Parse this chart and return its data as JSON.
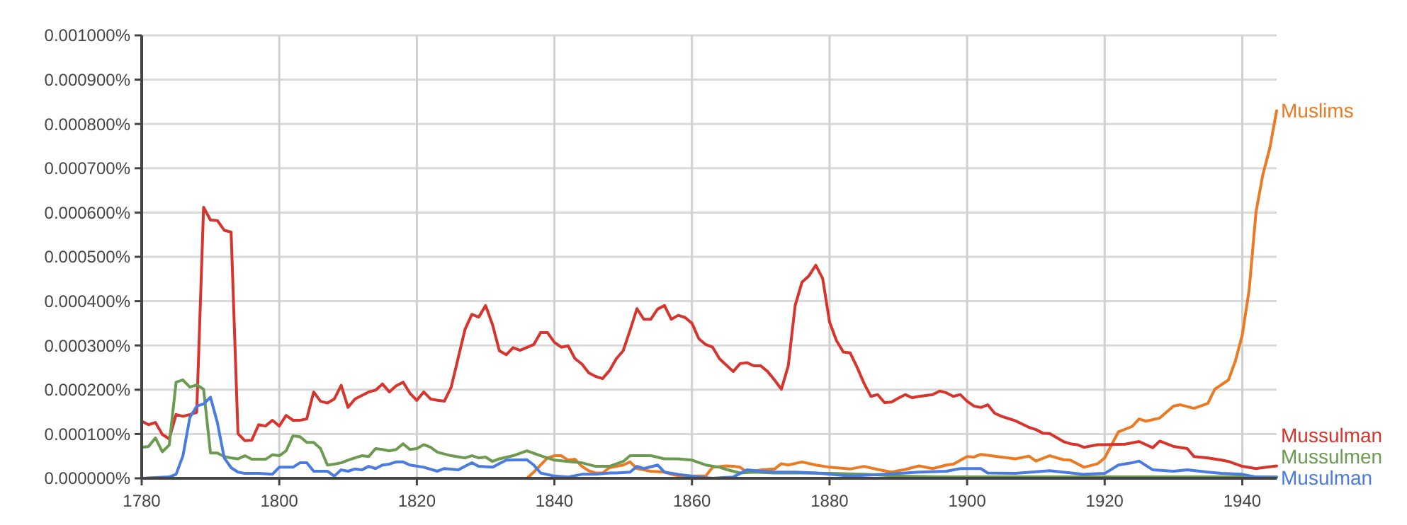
{
  "chart_data": {
    "type": "line",
    "xlim": [
      1780,
      1945
    ],
    "xticks": [
      1780,
      1800,
      1820,
      1840,
      1860,
      1880,
      1900,
      1920,
      1940
    ],
    "ylim": [
      0,
      0.001
    ],
    "yticks": [
      {
        "value": 0,
        "label": "0.000000%"
      },
      {
        "value": 0.0001,
        "label": "0.000100%"
      },
      {
        "value": 0.0002,
        "label": "0.000200%"
      },
      {
        "value": 0.0003,
        "label": "0.000300%"
      },
      {
        "value": 0.0004,
        "label": "0.000400%"
      },
      {
        "value": 0.0005,
        "label": "0.000500%"
      },
      {
        "value": 0.0006,
        "label": "0.000600%"
      },
      {
        "value": 0.0007,
        "label": "0.000700%"
      },
      {
        "value": 0.0008,
        "label": "0.000800%"
      },
      {
        "value": 0.0009,
        "label": "0.000900%"
      },
      {
        "value": 0.001,
        "label": "0.001000%"
      }
    ],
    "grid": true,
    "marker": "none",
    "line_style": "solid",
    "series": [
      {
        "name": "Muslims",
        "color": "#eb7a22",
        "x": [
          1780,
          1836,
          1837,
          1838,
          1839,
          1840,
          1841,
          1842,
          1843,
          1844,
          1845,
          1846,
          1847,
          1848,
          1849,
          1850,
          1851,
          1852,
          1853,
          1854,
          1856,
          1857,
          1858,
          1860,
          1862,
          1863,
          1865,
          1866,
          1867,
          1868,
          1870,
          1872,
          1873,
          1874,
          1876,
          1878,
          1880,
          1883,
          1885,
          1887,
          1889,
          1891,
          1893,
          1895,
          1897,
          1898,
          1900,
          1901,
          1902,
          1905,
          1907,
          1909,
          1910,
          1912,
          1914,
          1915,
          1917,
          1919,
          1920,
          1922,
          1924,
          1925,
          1926,
          1928,
          1930,
          1931,
          1933,
          1935,
          1936,
          1938,
          1939,
          1940,
          1941,
          1942,
          1943,
          1944,
          1945
        ],
        "values": [
          0,
          0,
          1.4e-05,
          3e-05,
          4.6e-05,
          5.1e-05,
          5.1e-05,
          4.1e-05,
          4.3e-05,
          2.7e-05,
          1.7e-05,
          1.2e-05,
          1.2e-05,
          2.4e-05,
          2.7e-05,
          3e-05,
          3.7e-05,
          2.2e-05,
          1.9e-05,
          1.6e-05,
          1.4e-05,
          9e-06,
          6e-06,
          5e-06,
          5e-06,
          2.5e-05,
          2.8e-05,
          2.7e-05,
          2.5e-05,
          1.4e-05,
          1.9e-05,
          2.1e-05,
          3.3e-05,
          3e-05,
          3.7e-05,
          3e-05,
          2.5e-05,
          2.1e-05,
          2.7e-05,
          2e-05,
          1.4e-05,
          2e-05,
          2.8e-05,
          2.2e-05,
          3e-05,
          3.2e-05,
          4.9e-05,
          4.8e-05,
          5.4e-05,
          4.8e-05,
          4.4e-05,
          5e-05,
          3.9e-05,
          5.1e-05,
          4.2e-05,
          4.1e-05,
          2.5e-05,
          3.3e-05,
          4.6e-05,
          0.000105,
          0.000117,
          0.000134,
          0.000129,
          0.000136,
          0.000163,
          0.000166,
          0.000158,
          0.000169,
          0.000201,
          0.000222,
          0.000265,
          0.000323,
          0.000425,
          0.000601,
          0.000686,
          0.000745,
          0.00083
        ]
      },
      {
        "name": "Mussulman",
        "color": "#d6342c",
        "x": [
          1780,
          1781,
          1782,
          1783,
          1784,
          1785,
          1786,
          1787,
          1788,
          1789,
          1790,
          1791,
          1792,
          1793,
          1794,
          1795,
          1796,
          1797,
          1798,
          1799,
          1800,
          1801,
          1802,
          1803,
          1804,
          1805,
          1806,
          1807,
          1808,
          1809,
          1810,
          1811,
          1812,
          1813,
          1814,
          1815,
          1816,
          1817,
          1818,
          1819,
          1820,
          1821,
          1822,
          1823,
          1824,
          1825,
          1827,
          1828,
          1829,
          1830,
          1831,
          1832,
          1833,
          1834,
          1835,
          1837,
          1838,
          1839,
          1840,
          1841,
          1842,
          1843,
          1844,
          1845,
          1846,
          1847,
          1848,
          1849,
          1850,
          1851,
          1852,
          1853,
          1854,
          1855,
          1856,
          1857,
          1858,
          1859,
          1860,
          1861,
          1862,
          1863,
          1864,
          1866,
          1867,
          1868,
          1869,
          1870,
          1871,
          1872,
          1873,
          1874,
          1875,
          1876,
          1877,
          1878,
          1879,
          1880,
          1881,
          1882,
          1883,
          1884,
          1885,
          1886,
          1887,
          1888,
          1889,
          1890,
          1891,
          1892,
          1893,
          1894,
          1895,
          1896,
          1897,
          1898,
          1899,
          1900,
          1901,
          1902,
          1903,
          1904,
          1905,
          1906,
          1907,
          1909,
          1910,
          1911,
          1912,
          1914,
          1915,
          1916,
          1917,
          1918,
          1919,
          1920,
          1923,
          1925,
          1927,
          1928,
          1930,
          1932,
          1933,
          1935,
          1937,
          1938,
          1940,
          1942,
          1945
        ],
        "values": [
          0.000129,
          0.000121,
          0.000126,
          9.9e-05,
          8.9e-05,
          0.000144,
          0.00014,
          0.000144,
          0.000149,
          0.000612,
          0.000583,
          0.000582,
          0.00056,
          0.000556,
          0.000101,
          8.5e-05,
          8.6e-05,
          0.000121,
          0.000118,
          0.000131,
          0.000118,
          0.000142,
          0.000131,
          0.000131,
          0.000134,
          0.000195,
          0.000174,
          0.00017,
          0.000179,
          0.00021,
          0.00016,
          0.000179,
          0.000187,
          0.000195,
          0.000199,
          0.000213,
          0.000195,
          0.000209,
          0.000217,
          0.000192,
          0.000176,
          0.000195,
          0.000179,
          0.000176,
          0.000174,
          0.000206,
          0.000336,
          0.00037,
          0.000364,
          0.00039,
          0.000347,
          0.000288,
          0.000279,
          0.000295,
          0.000289,
          0.000302,
          0.000329,
          0.000329,
          0.000307,
          0.000296,
          0.000299,
          0.00027,
          0.000258,
          0.000238,
          0.00023,
          0.000225,
          0.000243,
          0.00027,
          0.000288,
          0.000334,
          0.000383,
          0.000359,
          0.000359,
          0.000382,
          0.00039,
          0.000359,
          0.000368,
          0.000363,
          0.00035,
          0.000315,
          0.000302,
          0.000296,
          0.00027,
          0.000241,
          0.000259,
          0.000261,
          0.000254,
          0.000254,
          0.000241,
          0.000222,
          0.000201,
          0.000254,
          0.00039,
          0.000443,
          0.000457,
          0.000481,
          0.000451,
          0.000353,
          0.000311,
          0.000285,
          0.000283,
          0.000251,
          0.000215,
          0.000185,
          0.000189,
          0.000171,
          0.000172,
          0.000181,
          0.000189,
          0.000182,
          0.000185,
          0.000187,
          0.000189,
          0.000197,
          0.000193,
          0.000185,
          0.000189,
          0.000174,
          0.000163,
          0.00016,
          0.000166,
          0.000147,
          0.00014,
          0.000135,
          0.00013,
          0.000115,
          0.00011,
          0.000102,
          0.000101,
          8.3e-05,
          7.8e-05,
          7.6e-05,
          7e-05,
          7.3e-05,
          7.6e-05,
          7.6e-05,
          7.7e-05,
          8.3e-05,
          6.9e-05,
          8.4e-05,
          7.2e-05,
          6.7e-05,
          4.9e-05,
          4.6e-05,
          4.1e-05,
          3.8e-05,
          2.7e-05,
          2.2e-05,
          2.8e-05
        ]
      },
      {
        "name": "Mussulmen",
        "color": "#6b9a50",
        "x": [
          1780,
          1781,
          1782,
          1783,
          1784,
          1785,
          1786,
          1787,
          1788,
          1789,
          1790,
          1791,
          1792,
          1793,
          1794,
          1795,
          1796,
          1798,
          1799,
          1800,
          1801,
          1802,
          1803,
          1804,
          1805,
          1806,
          1807,
          1808,
          1809,
          1810,
          1811,
          1812,
          1813,
          1814,
          1815,
          1816,
          1817,
          1818,
          1819,
          1820,
          1821,
          1822,
          1823,
          1825,
          1827,
          1828,
          1829,
          1830,
          1831,
          1832,
          1834,
          1836,
          1838,
          1840,
          1842,
          1844,
          1846,
          1848,
          1850,
          1851,
          1854,
          1856,
          1858,
          1860,
          1862,
          1864,
          1865,
          1867,
          1869,
          1872,
          1876,
          1880,
          1885,
          1890,
          1896,
          1945
        ],
        "values": [
          7e-05,
          7.2e-05,
          9.1e-05,
          6e-05,
          7.5e-05,
          0.000217,
          0.000222,
          0.000206,
          0.000211,
          0.000201,
          5.7e-05,
          5.7e-05,
          4.9e-05,
          4.6e-05,
          4.4e-05,
          5.1e-05,
          4.3e-05,
          4.3e-05,
          5.3e-05,
          5.1e-05,
          6.2e-05,
          9.6e-05,
          9.4e-05,
          8.1e-05,
          8.1e-05,
          6.7e-05,
          3e-05,
          3.2e-05,
          3.5e-05,
          4.1e-05,
          4.6e-05,
          5.1e-05,
          4.9e-05,
          6.7e-05,
          6.5e-05,
          6.2e-05,
          6.5e-05,
          7.8e-05,
          6.5e-05,
          6.7e-05,
          7.6e-05,
          7e-05,
          5.9e-05,
          5.1e-05,
          4.6e-05,
          5.1e-05,
          4.6e-05,
          4.8e-05,
          3.8e-05,
          4.4e-05,
          5.1e-05,
          6.2e-05,
          5.1e-05,
          4.1e-05,
          3.8e-05,
          3.5e-05,
          2.7e-05,
          2.7e-05,
          3.8e-05,
          5.1e-05,
          5.1e-05,
          4.4e-05,
          4.4e-05,
          4.1e-05,
          3e-05,
          2.5e-05,
          2e-05,
          1.2e-05,
          1.4e-05,
          1.2e-05,
          1.2e-05,
          1.1e-05,
          9e-06,
          5e-06,
          3e-06,
          3e-06
        ]
      },
      {
        "name": "Musulman",
        "color": "#4a7be0",
        "x": [
          1780,
          1784,
          1785,
          1786,
          1787,
          1788,
          1789,
          1790,
          1791,
          1792,
          1793,
          1794,
          1795,
          1797,
          1799,
          1800,
          1802,
          1803,
          1804,
          1805,
          1807,
          1808,
          1809,
          1810,
          1811,
          1812,
          1813,
          1814,
          1815,
          1816,
          1817,
          1818,
          1819,
          1821,
          1823,
          1824,
          1826,
          1828,
          1829,
          1831,
          1832,
          1833,
          1836,
          1837,
          1838,
          1840,
          1842,
          1844,
          1846,
          1848,
          1849,
          1851,
          1852,
          1853,
          1855,
          1856,
          1858,
          1861,
          1863,
          1866,
          1868,
          1870,
          1872,
          1875,
          1878,
          1883,
          1888,
          1893,
          1897,
          1899,
          1902,
          1903,
          1907,
          1912,
          1917,
          1920,
          1922,
          1924,
          1925,
          1927,
          1930,
          1932,
          1935,
          1937,
          1940,
          1942,
          1945
        ],
        "values": [
          0,
          3e-06,
          9e-06,
          5.1e-05,
          0.000137,
          0.000163,
          0.000168,
          0.000183,
          0.000126,
          4.6e-05,
          2.4e-05,
          1.4e-05,
          1.1e-05,
          1.1e-05,
          9e-06,
          2.5e-05,
          2.5e-05,
          3.5e-05,
          3.5e-05,
          1.6e-05,
          1.6e-05,
          5e-06,
          1.9e-05,
          1.6e-05,
          2.1e-05,
          1.9e-05,
          2.7e-05,
          2.2e-05,
          3e-05,
          3.2e-05,
          3.7e-05,
          3.7e-05,
          3e-05,
          2.5e-05,
          1.6e-05,
          2.2e-05,
          1.9e-05,
          3.5e-05,
          2.7e-05,
          2.5e-05,
          3.3e-05,
          4.1e-05,
          4.2e-05,
          3e-05,
          1.2e-05,
          5e-06,
          3e-06,
          9e-06,
          9e-06,
          1.2e-05,
          1.2e-05,
          1.4e-05,
          2.7e-05,
          2.2e-05,
          3e-05,
          1.4e-05,
          9e-06,
          3e-06,
          0,
          3e-06,
          1.9e-05,
          1.6e-05,
          1.4e-05,
          1.4e-05,
          1.2e-05,
          5e-06,
          9e-06,
          1.4e-05,
          1.6e-05,
          2.2e-05,
          2.2e-05,
          1.2e-05,
          1.1e-05,
          1.7e-05,
          9e-06,
          1.1e-05,
          3e-05,
          3.5e-05,
          3.9e-05,
          1.9e-05,
          1.6e-05,
          1.9e-05,
          1.4e-05,
          1.1e-05,
          9e-06,
          3e-06,
          2e-06
        ]
      }
    ]
  }
}
